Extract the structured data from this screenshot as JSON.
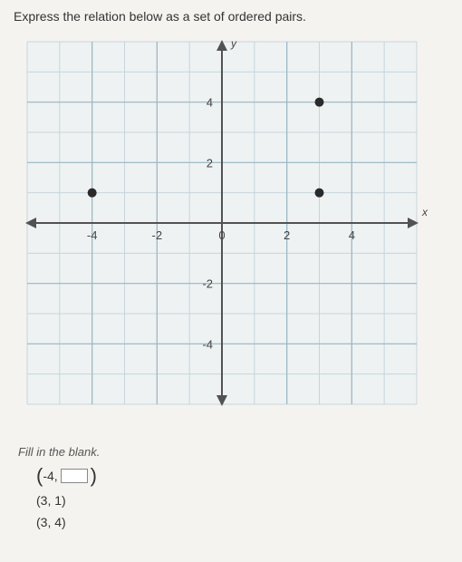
{
  "question": "Express the relation below as a set of ordered pairs.",
  "chart": {
    "type": "scatter",
    "xlim": [
      -6,
      6
    ],
    "ylim": [
      -6,
      6
    ],
    "xticks": [
      -4,
      -2,
      0,
      2,
      4
    ],
    "yticks": [
      -4,
      -2,
      2,
      4
    ],
    "xtick_labels": [
      "-4",
      "-2",
      "0",
      "2",
      "4"
    ],
    "ytick_labels": [
      "-4",
      "-2",
      "2",
      "4"
    ],
    "grid_step": 1,
    "points": [
      {
        "x": -4,
        "y": 1
      },
      {
        "x": 3,
        "y": 1
      },
      {
        "x": 3,
        "y": 4
      }
    ],
    "point_color": "#2a2a2a",
    "point_radius": 5,
    "grid_color": "#9bb8c4",
    "grid_minor_color": "#c5d6dd",
    "axis_color": "#525252",
    "background_color": "#eef2f2",
    "tick_fontsize": 13,
    "axis_label_y": "y",
    "axis_label_x": "x",
    "axis_label_fontsize": 12
  },
  "instruction": "Fill in the blank.",
  "answers": {
    "blank_pair_prefix": "-4,",
    "pair2": "(3, 1)",
    "pair3": "(3, 4)"
  }
}
